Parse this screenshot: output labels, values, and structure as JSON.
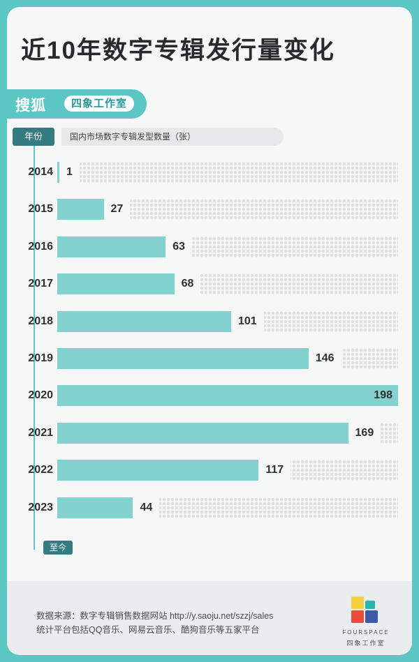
{
  "header": {
    "title": "近10年数字专辑发行量变化",
    "brand_main": "搜狐",
    "brand_sub": "四象工作室"
  },
  "chart_data": {
    "type": "bar",
    "orientation": "horizontal",
    "title": "近10年数字专辑发行量变化",
    "category_header": "年份",
    "value_header": "国内市场数字专辑发型数量（张）",
    "end_tag": "至今",
    "categories": [
      "2014",
      "2015",
      "2016",
      "2017",
      "2018",
      "2019",
      "2020",
      "2021",
      "2022",
      "2023"
    ],
    "values": [
      1,
      27,
      63,
      68,
      101,
      146,
      198,
      169,
      117,
      44
    ],
    "xlim": [
      0,
      198
    ],
    "grid": false,
    "colors": {
      "bar": "#84d2d0",
      "accent": "#5cc6c3",
      "tag": "#357c82"
    }
  },
  "footer": {
    "source_line": "数据来源：数字专辑销售数据网站 http://y.saoju.net/szzj/sales",
    "note_line": "统计平台包括QQ音乐、网易云音乐、酷狗音乐等五家平台",
    "logo_word": "FOURSPACE",
    "logo_sub": "四象工作室",
    "logo_colors": [
      "#f4d03f",
      "#e74c3c",
      "#3b5ba9",
      "#2bb3ae"
    ]
  }
}
